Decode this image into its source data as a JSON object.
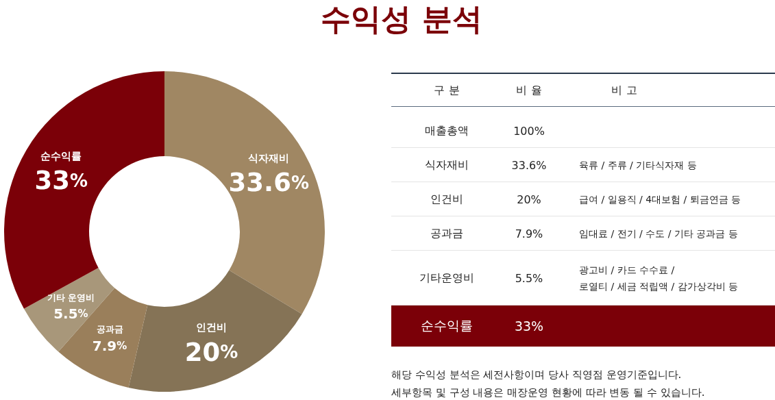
{
  "chart_data": [
    {
      "type": "donut",
      "title": "수익성 분석",
      "categories": [
        "식자재비",
        "인건비",
        "공과금",
        "기타 운영비",
        "순수익률"
      ],
      "values": [
        33.6,
        20,
        7.9,
        5.5,
        33
      ],
      "value_labels": [
        "33.6%",
        "20%",
        "7.9%",
        "5.5%",
        "33%"
      ],
      "colors": [
        "#a08763",
        "#857356",
        "#9a7f5b",
        "#a8977a",
        "#7b0008"
      ]
    },
    {
      "type": "other",
      "categories": [
        "매출총액",
        "식자재비",
        "인건비",
        "공과금",
        "기타운영비",
        "순수익률"
      ],
      "value_labels": [
        "100%",
        "33.6%",
        "20%",
        "7.9%",
        "5.5%",
        "33%"
      ],
      "colors": [
        null,
        null,
        null,
        null,
        null,
        "#7b0008"
      ],
      "annotations": [
        "구 분",
        "비 율",
        "비 고",
        {
          "text": "육류 / 주류 / 기타식자재 등",
          "y": "식자재비"
        },
        {
          "text": "급여 / 일용직 / 4대보험 / 퇴금연금 등",
          "y": "인건비"
        },
        {
          "text": "임대료 / 전기 / 수도 / 기타 공과금 등",
          "y": "공과금"
        },
        {
          "text": "광고비 / 카드 수수료 /\n로열티 / 세금 적립액 / 감가상각비 등",
          "y": "기타운영비"
        },
        "해당 수익성 분석은 세전사항이며 당사 직영점 운영기준입니다.",
        "세부항목 및 구성 내용은 매장운영 현황에 따라 변동 될 수 있습니다."
      ]
    }
  ]
}
